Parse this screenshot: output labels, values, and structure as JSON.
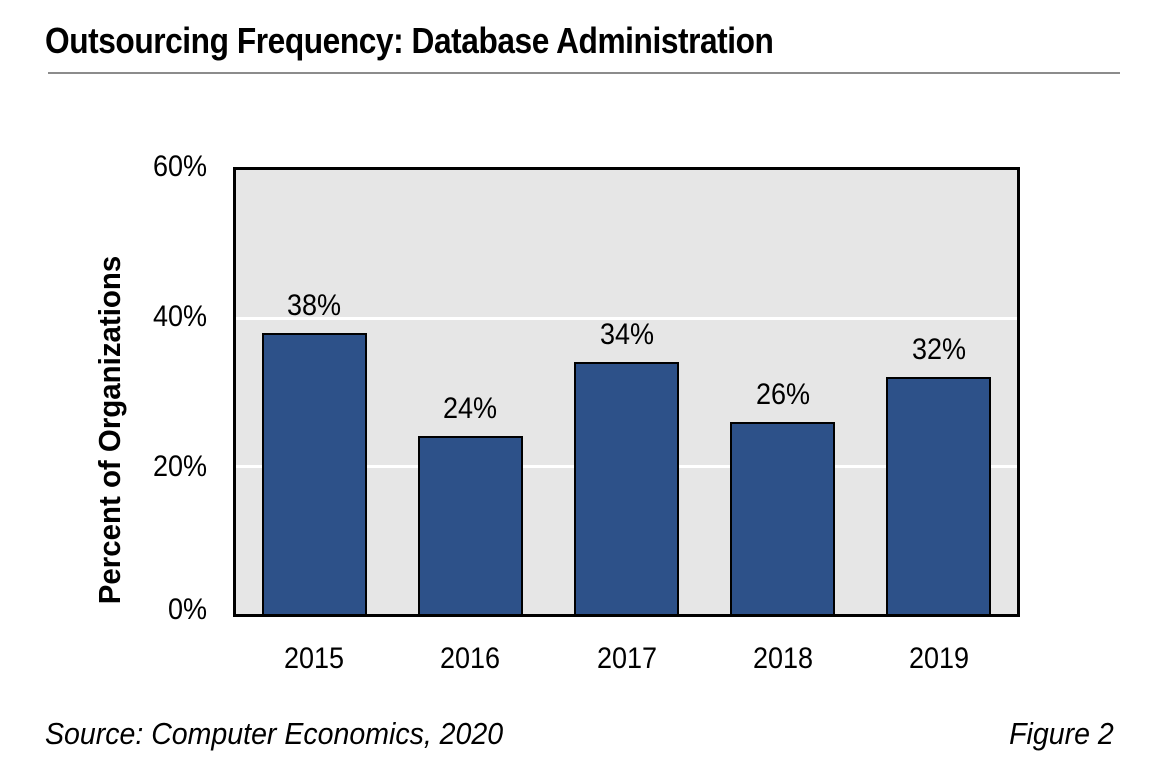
{
  "page": {
    "title": "Outsourcing Frequency: Database Administration",
    "source": "Source: Computer Economics, 2020",
    "figure_label": "Figure 2"
  },
  "chart_data": {
    "type": "bar",
    "title": "Outsourcing Frequency: Database Administration",
    "categories": [
      "2015",
      "2016",
      "2017",
      "2018",
      "2019"
    ],
    "values": [
      38,
      24,
      34,
      26,
      32
    ],
    "value_labels": [
      "38%",
      "24%",
      "34%",
      "26%",
      "32%"
    ],
    "xlabel": "",
    "ylabel": "Percent of Organizations",
    "ylim": [
      0,
      60
    ],
    "y_ticks": [
      {
        "value": 60,
        "label": "60%"
      },
      {
        "value": 40,
        "label": "40%"
      },
      {
        "value": 20,
        "label": "20%"
      },
      {
        "value": 0,
        "label": "0%"
      }
    ],
    "gridline_values": [
      40,
      20
    ],
    "grid": "horizontal",
    "legend_position": "none",
    "source": "Source: Computer Economics, 2020",
    "figure_label": "Figure 2",
    "colors": {
      "bar_fill": "#2D5189",
      "bar_border": "#000000",
      "plot_bg": "#E6E6E6",
      "plot_border": "#000000",
      "gridline": "#FFFFFF",
      "text": "#000000",
      "title_rule": "#8C8C8C",
      "page_bg": "#FFFFFF"
    }
  }
}
